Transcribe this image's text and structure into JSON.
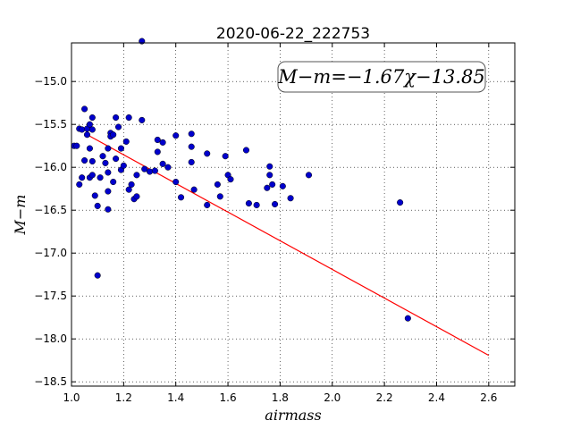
{
  "chart_data": {
    "type": "scatter",
    "title": "2020-06-22_222753",
    "xlabel": "airmass",
    "ylabel": "M−m",
    "xlim": [
      1.0,
      2.7
    ],
    "ylim": [
      -18.55,
      -14.55
    ],
    "y_inverted": true,
    "grid": true,
    "x_ticks": [
      1.0,
      1.2,
      1.4,
      1.6,
      1.8,
      2.0,
      2.2,
      2.4,
      2.6
    ],
    "x_tick_labels": [
      "1.0",
      "1.2",
      "1.4",
      "1.6",
      "1.8",
      "2.0",
      "2.2",
      "2.4",
      "2.6"
    ],
    "y_ticks": [
      -15.0,
      -15.5,
      -16.0,
      -16.5,
      -17.0,
      -17.5,
      -18.0,
      -18.5
    ],
    "y_tick_labels": [
      "−15.0",
      "−15.5",
      "−16.0",
      "−16.5",
      "−17.0",
      "−17.5",
      "−18.0",
      "−18.5"
    ],
    "annotation": "M−m=−1.67χ−13.85",
    "annotation_position": "top-right",
    "point_color": "#0000cc",
    "fit_color": "#ff0000",
    "fit": {
      "slope": -1.67,
      "intercept": -13.85,
      "x_range": [
        1.05,
        2.6
      ]
    },
    "points": [
      {
        "x": 1.01,
        "y": -15.75
      },
      {
        "x": 1.02,
        "y": -15.75
      },
      {
        "x": 1.03,
        "y": -15.55
      },
      {
        "x": 1.03,
        "y": -16.2
      },
      {
        "x": 1.04,
        "y": -16.12
      },
      {
        "x": 1.04,
        "y": -15.56
      },
      {
        "x": 1.05,
        "y": -15.32
      },
      {
        "x": 1.05,
        "y": -15.92
      },
      {
        "x": 1.06,
        "y": -15.55
      },
      {
        "x": 1.06,
        "y": -15.62
      },
      {
        "x": 1.07,
        "y": -16.12
      },
      {
        "x": 1.07,
        "y": -15.78
      },
      {
        "x": 1.07,
        "y": -15.5
      },
      {
        "x": 1.08,
        "y": -15.56
      },
      {
        "x": 1.08,
        "y": -15.42
      },
      {
        "x": 1.08,
        "y": -15.93
      },
      {
        "x": 1.08,
        "y": -16.09
      },
      {
        "x": 1.09,
        "y": -16.33
      },
      {
        "x": 1.1,
        "y": -16.45
      },
      {
        "x": 1.1,
        "y": -17.26
      },
      {
        "x": 1.11,
        "y": -16.12
      },
      {
        "x": 1.12,
        "y": -15.87
      },
      {
        "x": 1.13,
        "y": -15.95
      },
      {
        "x": 1.14,
        "y": -15.78
      },
      {
        "x": 1.14,
        "y": -16.06
      },
      {
        "x": 1.14,
        "y": -16.28
      },
      {
        "x": 1.14,
        "y": -16.49
      },
      {
        "x": 1.15,
        "y": -15.6
      },
      {
        "x": 1.15,
        "y": -15.64
      },
      {
        "x": 1.16,
        "y": -15.62
      },
      {
        "x": 1.16,
        "y": -16.17
      },
      {
        "x": 1.17,
        "y": -15.42
      },
      {
        "x": 1.17,
        "y": -15.9
      },
      {
        "x": 1.18,
        "y": -15.53
      },
      {
        "x": 1.19,
        "y": -15.78
      },
      {
        "x": 1.19,
        "y": -16.03
      },
      {
        "x": 1.2,
        "y": -15.98
      },
      {
        "x": 1.21,
        "y": -15.7
      },
      {
        "x": 1.22,
        "y": -16.26
      },
      {
        "x": 1.22,
        "y": -15.42
      },
      {
        "x": 1.23,
        "y": -16.2
      },
      {
        "x": 1.24,
        "y": -16.37
      },
      {
        "x": 1.25,
        "y": -16.09
      },
      {
        "x": 1.25,
        "y": -16.34
      },
      {
        "x": 1.27,
        "y": -14.53
      },
      {
        "x": 1.27,
        "y": -15.45
      },
      {
        "x": 1.28,
        "y": -16.02
      },
      {
        "x": 1.3,
        "y": -16.05
      },
      {
        "x": 1.32,
        "y": -16.04
      },
      {
        "x": 1.33,
        "y": -15.68
      },
      {
        "x": 1.33,
        "y": -15.82
      },
      {
        "x": 1.35,
        "y": -15.71
      },
      {
        "x": 1.35,
        "y": -15.96
      },
      {
        "x": 1.37,
        "y": -16.0
      },
      {
        "x": 1.4,
        "y": -15.63
      },
      {
        "x": 1.4,
        "y": -16.17
      },
      {
        "x": 1.42,
        "y": -16.35
      },
      {
        "x": 1.46,
        "y": -15.61
      },
      {
        "x": 1.46,
        "y": -15.76
      },
      {
        "x": 1.46,
        "y": -15.94
      },
      {
        "x": 1.47,
        "y": -16.26
      },
      {
        "x": 1.52,
        "y": -15.84
      },
      {
        "x": 1.52,
        "y": -16.44
      },
      {
        "x": 1.56,
        "y": -16.2
      },
      {
        "x": 1.57,
        "y": -16.34
      },
      {
        "x": 1.59,
        "y": -15.87
      },
      {
        "x": 1.6,
        "y": -16.09
      },
      {
        "x": 1.61,
        "y": -16.14
      },
      {
        "x": 1.67,
        "y": -15.8
      },
      {
        "x": 1.68,
        "y": -16.42
      },
      {
        "x": 1.71,
        "y": -16.44
      },
      {
        "x": 1.75,
        "y": -16.24
      },
      {
        "x": 1.76,
        "y": -15.99
      },
      {
        "x": 1.76,
        "y": -16.09
      },
      {
        "x": 1.77,
        "y": -16.2
      },
      {
        "x": 1.78,
        "y": -16.43
      },
      {
        "x": 1.81,
        "y": -16.22
      },
      {
        "x": 1.84,
        "y": -16.36
      },
      {
        "x": 1.91,
        "y": -16.09
      },
      {
        "x": 2.26,
        "y": -16.41
      },
      {
        "x": 2.29,
        "y": -17.76
      }
    ]
  }
}
